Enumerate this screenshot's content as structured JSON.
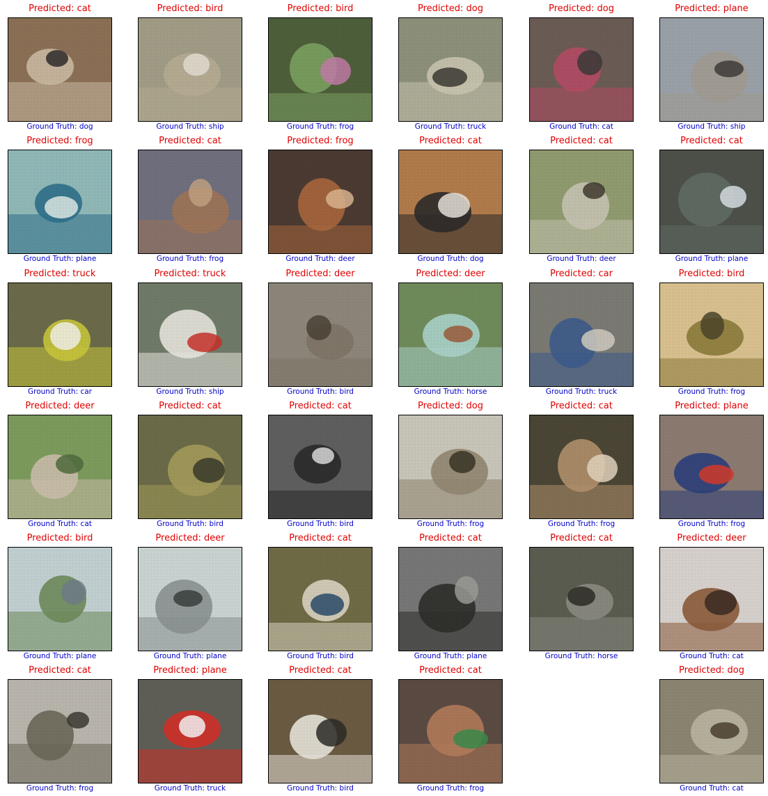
{
  "colors": {
    "predicted": "#e00000",
    "ground_truth": "#0000c8",
    "frame": "#000000"
  },
  "labels": {
    "predicted_prefix": "Predicted: ",
    "ground_truth_prefix": "Ground Truth: "
  },
  "cells": [
    {
      "predicted": "Predicted: cat",
      "ground_truth": "Ground Truth: dog",
      "scene": [
        "#8a6f55",
        "#c9b8a2",
        "#2f2b2b"
      ]
    },
    {
      "predicted": "Predicted: bird",
      "ground_truth": "Ground Truth: ship",
      "scene": [
        "#a09b85",
        "#b5ab92",
        "#e1dcd0"
      ]
    },
    {
      "predicted": "Predicted: bird",
      "ground_truth": "Ground Truth: frog",
      "scene": [
        "#4d5e3a",
        "#7ba060",
        "#c07aa5"
      ]
    },
    {
      "predicted": "Predicted: dog",
      "ground_truth": "Ground Truth: truck",
      "scene": [
        "#8c8f7a",
        "#c7c2ad",
        "#3b3a33"
      ]
    },
    {
      "predicted": "Predicted: dog",
      "ground_truth": "Ground Truth: cat",
      "scene": [
        "#6b5b55",
        "#b34a64",
        "#3a3a38"
      ]
    },
    {
      "predicted": "Predicted: plane",
      "ground_truth": "Ground Truth: ship",
      "scene": [
        "#9aa0a8",
        "#a09a90",
        "#3e3b38"
      ]
    },
    {
      "predicted": "Predicted: frog",
      "ground_truth": "Ground Truth: plane",
      "scene": [
        "#8fb7b6",
        "#2f6f8a",
        "#dce8e3"
      ]
    },
    {
      "predicted": "Predicted: cat",
      "ground_truth": "Ground Truth: frog",
      "scene": [
        "#6e6e7d",
        "#9c7356",
        "#c0a080"
      ]
    },
    {
      "predicted": "Predicted: frog",
      "ground_truth": "Ground Truth: deer",
      "scene": [
        "#4a3a32",
        "#a7663c",
        "#d8b48e"
      ]
    },
    {
      "predicted": "Predicted: cat",
      "ground_truth": "Ground Truth: dog",
      "scene": [
        "#b07a4a",
        "#2c2a2a",
        "#e5e0d8"
      ]
    },
    {
      "predicted": "Predicted: cat",
      "ground_truth": "Ground Truth: deer",
      "scene": [
        "#8f9a6e",
        "#c4c2b0",
        "#3f3a30"
      ]
    },
    {
      "predicted": "Predicted: cat",
      "ground_truth": "Ground Truth: plane",
      "scene": [
        "#4d5049",
        "#5e6a63",
        "#d6dde2"
      ]
    },
    {
      "predicted": "Predicted: truck",
      "ground_truth": "Ground Truth: car",
      "scene": [
        "#6a6a4a",
        "#c7c43a",
        "#f0efe8"
      ]
    },
    {
      "predicted": "Predicted: truck",
      "ground_truth": "Ground Truth: ship",
      "scene": [
        "#6f7a68",
        "#e6e3dc",
        "#c6302a"
      ]
    },
    {
      "predicted": "Predicted: deer",
      "ground_truth": "Ground Truth: bird",
      "scene": [
        "#8c857a",
        "#7d7466",
        "#4a4236"
      ]
    },
    {
      "predicted": "Predicted: deer",
      "ground_truth": "Ground Truth: horse",
      "scene": [
        "#6f8a5a",
        "#a8d0c8",
        "#9a5a3a"
      ]
    },
    {
      "predicted": "Predicted: car",
      "ground_truth": "Ground Truth: truck",
      "scene": [
        "#7a7a73",
        "#3c5a8a",
        "#cfcabe"
      ]
    },
    {
      "predicted": "Predicted: bird",
      "ground_truth": "Ground Truth: frog",
      "scene": [
        "#d8bf8e",
        "#8a7a3a",
        "#4a4428"
      ]
    },
    {
      "predicted": "Predicted: deer",
      "ground_truth": "Ground Truth: cat",
      "scene": [
        "#7c9a5c",
        "#c8bba8",
        "#4f6a3c"
      ]
    },
    {
      "predicted": "Predicted: cat",
      "ground_truth": "Ground Truth: bird",
      "scene": [
        "#6a6a48",
        "#a39a5a",
        "#3a3a2a"
      ]
    },
    {
      "predicted": "Predicted: cat",
      "ground_truth": "Ground Truth: bird",
      "scene": [
        "#5e5e5e",
        "#2a2a2a",
        "#d8d8d8"
      ]
    },
    {
      "predicted": "Predicted: dog",
      "ground_truth": "Ground Truth: frog",
      "scene": [
        "#c7c4b8",
        "#8f8570",
        "#3a3426"
      ]
    },
    {
      "predicted": "Predicted: cat",
      "ground_truth": "Ground Truth: frog",
      "scene": [
        "#4a4535",
        "#b08f6a",
        "#e0d2bc"
      ]
    },
    {
      "predicted": "Predicted: plane",
      "ground_truth": "Ground Truth: frog",
      "scene": [
        "#8a7a70",
        "#2b3e7a",
        "#d23a2a"
      ]
    },
    {
      "predicted": "Predicted: bird",
      "ground_truth": "Ground Truth: plane",
      "scene": [
        "#c0ced0",
        "#6e8a5a",
        "#6f7d86"
      ]
    },
    {
      "predicted": "Predicted: deer",
      "ground_truth": "Ground Truth: plane",
      "scene": [
        "#c8d2d0",
        "#8a9090",
        "#3a3e3c"
      ]
    },
    {
      "predicted": "Predicted: cat",
      "ground_truth": "Ground Truth: bird",
      "scene": [
        "#6e6a45",
        "#d8d2c0",
        "#2a4a6a"
      ]
    },
    {
      "predicted": "Predicted: cat",
      "ground_truth": "Ground Truth: plane",
      "scene": [
        "#767676",
        "#2e2e2a",
        "#9a9a95"
      ]
    },
    {
      "predicted": "Predicted: cat",
      "ground_truth": "Ground Truth: horse",
      "scene": [
        "#5a5c50",
        "#8a8a80",
        "#2c2c26"
      ]
    },
    {
      "predicted": "Predicted: deer",
      "ground_truth": "Ground Truth: cat",
      "scene": [
        "#d6d0cc",
        "#8a5a3a",
        "#3a2a22"
      ]
    },
    {
      "predicted": "Predicted: cat",
      "ground_truth": "Ground Truth: frog",
      "scene": [
        "#b8b4ac",
        "#6a6658",
        "#3a3830"
      ]
    },
    {
      "predicted": "Predicted: plane",
      "ground_truth": "Ground Truth: truck",
      "scene": [
        "#5e5e56",
        "#d03028",
        "#f2f2f2"
      ]
    },
    {
      "predicted": "Predicted: cat",
      "ground_truth": "Ground Truth: bird",
      "scene": [
        "#6a5a42",
        "#e6e2d8",
        "#2c2a26"
      ]
    },
    {
      "predicted": "Predicted: cat",
      "ground_truth": "Ground Truth: frog",
      "scene": [
        "#5a4a42",
        "#b07a5a",
        "#3a8a4a"
      ]
    },
    null,
    {
      "predicted": "Predicted: dog",
      "ground_truth": "Ground Truth: cat",
      "scene": [
        "#8a8470",
        "#b8b4a0",
        "#4a4030"
      ]
    }
  ]
}
